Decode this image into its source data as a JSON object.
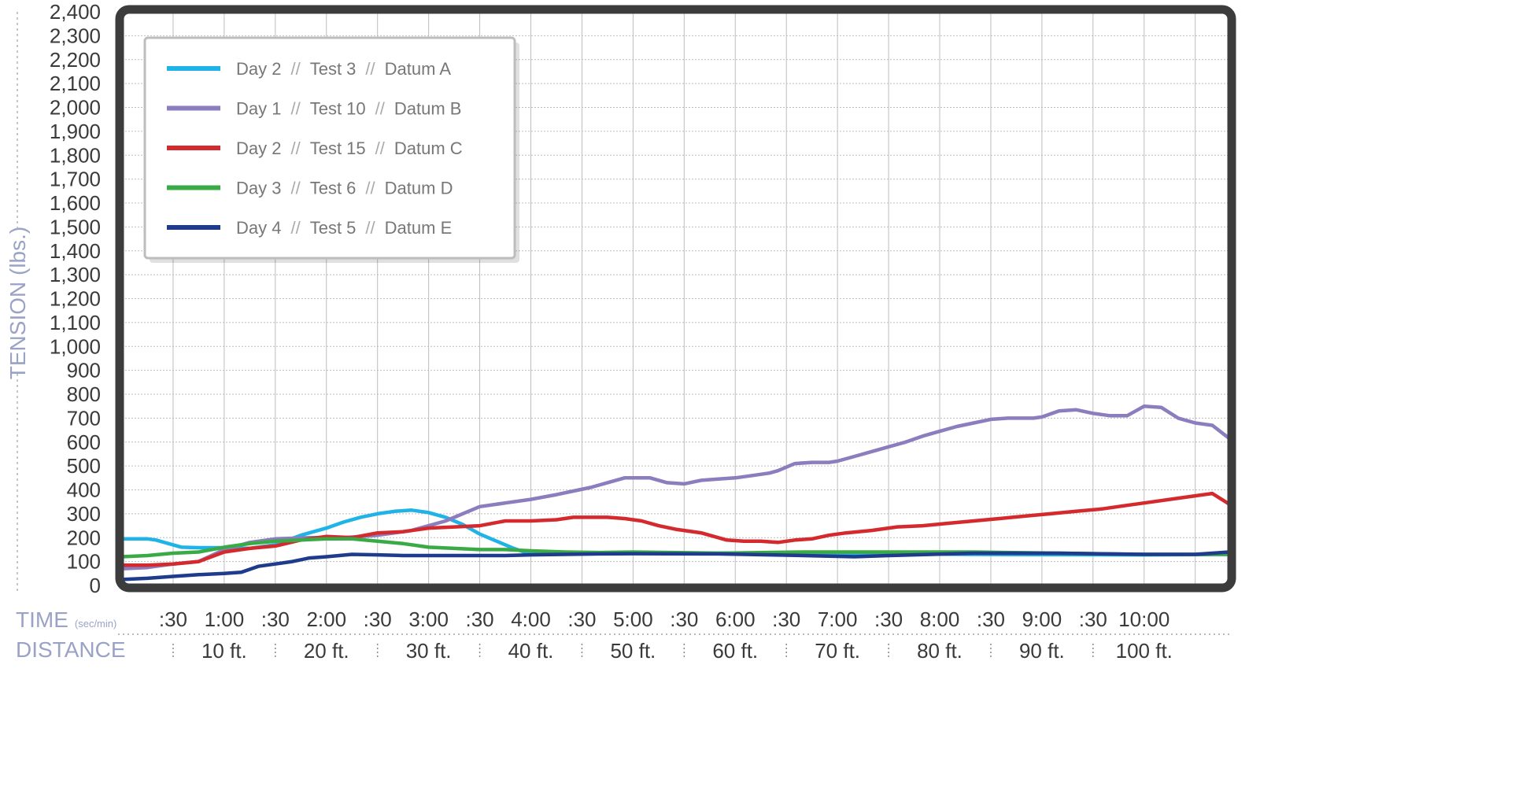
{
  "chart_data": {
    "type": "line",
    "ylabel": "TENSION (lbs.)",
    "ylim": [
      0,
      2400
    ],
    "y_ticks": [
      "0",
      "100",
      "200",
      "300",
      "400",
      "500",
      "600",
      "700",
      "800",
      "900",
      "1,000",
      "1,100",
      "1,200",
      "1,300",
      "1,400",
      "1,500",
      "1,600",
      "1,700",
      "1,800",
      "1,900",
      "2,000",
      "2,100",
      "2,200",
      "2,300",
      "2,400"
    ],
    "xlim_seconds": [
      0,
      650
    ],
    "time_axis": {
      "label": "TIME",
      "unit": "(sec/min)",
      "ticks": [
        ":30",
        "1:00",
        ":30",
        "2:00",
        ":30",
        "3:00",
        ":30",
        "4:00",
        ":30",
        "5:00",
        ":30",
        "6:00",
        ":30",
        "7:00",
        ":30",
        "8:00",
        ":30",
        "9:00",
        ":30",
        "10:00"
      ]
    },
    "distance_axis": {
      "label": "DISTANCE",
      "ticks": [
        "10 ft.",
        "20 ft.",
        "30 ft.",
        "40 ft.",
        "50 ft.",
        "60 ft.",
        "70 ft.",
        "80 ft.",
        "90 ft.",
        "100 ft."
      ]
    },
    "grid": true,
    "legend_position": "top-left",
    "series": [
      {
        "name": "Day 2 // Test 3 // Datum A",
        "legend": [
          "Day 2",
          "Test 3",
          "Datum A"
        ],
        "color": "#1fb3e8",
        "x": [
          0,
          15,
          20,
          30,
          35,
          45,
          60,
          75,
          90,
          105,
          120,
          130,
          140,
          150,
          160,
          170,
          180,
          190,
          200,
          210,
          220,
          230,
          240,
          250,
          260,
          280,
          300,
          400,
          500,
          600,
          650
        ],
        "y": [
          195,
          195,
          190,
          170,
          160,
          158,
          158,
          155,
          170,
          210,
          240,
          265,
          285,
          300,
          310,
          315,
          305,
          285,
          255,
          215,
          185,
          155,
          130,
          135,
          135,
          135,
          135,
          135,
          130,
          128,
          130
        ]
      },
      {
        "name": "Day 1 // Test 10 // Datum B",
        "legend": [
          "Day 1",
          "Test 10",
          "Datum B"
        ],
        "color": "#8b7dbe",
        "x": [
          0,
          15,
          30,
          45,
          60,
          75,
          90,
          110,
          130,
          150,
          170,
          190,
          210,
          225,
          240,
          255,
          265,
          275,
          285,
          295,
          300,
          310,
          320,
          330,
          340,
          350,
          360,
          370,
          380,
          385,
          395,
          405,
          415,
          420,
          430,
          440,
          450,
          460,
          470,
          480,
          490,
          500,
          510,
          520,
          530,
          535,
          540,
          550,
          560,
          570,
          575,
          580,
          590,
          595,
          600,
          610,
          620,
          630,
          640,
          650
        ],
        "y": [
          70,
          75,
          90,
          100,
          150,
          180,
          195,
          200,
          200,
          210,
          230,
          270,
          330,
          345,
          360,
          380,
          395,
          410,
          430,
          450,
          450,
          450,
          430,
          425,
          440,
          445,
          450,
          460,
          470,
          480,
          510,
          515,
          515,
          520,
          540,
          560,
          580,
          600,
          625,
          645,
          665,
          680,
          695,
          700,
          700,
          700,
          705,
          730,
          735,
          720,
          715,
          710,
          710,
          730,
          750,
          745,
          700,
          680,
          670,
          615
        ]
      },
      {
        "name": "Day 2 // Test 15 // Datum C",
        "legend": [
          "Day 2",
          "Test 15",
          "Datum C"
        ],
        "color": "#d42a2e",
        "x": [
          0,
          15,
          30,
          45,
          60,
          75,
          90,
          105,
          120,
          135,
          150,
          165,
          180,
          195,
          210,
          225,
          240,
          255,
          265,
          275,
          285,
          295,
          305,
          315,
          325,
          340,
          355,
          365,
          375,
          385,
          395,
          405,
          415,
          425,
          440,
          455,
          470,
          485,
          500,
          515,
          530,
          545,
          560,
          575,
          590,
          605,
          620,
          630,
          640,
          650
        ],
        "y": [
          85,
          85,
          90,
          100,
          140,
          155,
          165,
          190,
          205,
          200,
          220,
          225,
          240,
          245,
          250,
          270,
          270,
          275,
          285,
          285,
          285,
          280,
          270,
          250,
          235,
          220,
          190,
          185,
          185,
          180,
          190,
          195,
          210,
          220,
          230,
          245,
          250,
          260,
          270,
          280,
          290,
          300,
          310,
          320,
          335,
          350,
          365,
          375,
          385,
          340
        ]
      },
      {
        "name": "Day 3 // Test 6 // Datum D",
        "legend": [
          "Day 3",
          "Test 6",
          "Datum D"
        ],
        "color": "#3aaa46",
        "x": [
          0,
          15,
          30,
          45,
          60,
          75,
          90,
          105,
          120,
          135,
          150,
          165,
          180,
          195,
          210,
          225,
          240,
          260,
          280,
          300,
          350,
          400,
          450,
          500,
          550,
          600,
          650
        ],
        "y": [
          120,
          125,
          135,
          140,
          160,
          175,
          185,
          190,
          195,
          195,
          185,
          175,
          160,
          155,
          150,
          150,
          145,
          140,
          138,
          140,
          135,
          140,
          140,
          140,
          135,
          130,
          130
        ]
      },
      {
        "name": "Day 4 // Test 5 // Datum E",
        "legend": [
          "Day 4",
          "Test 5",
          "Datum E"
        ],
        "color": "#1f3b8c",
        "x": [
          0,
          15,
          30,
          45,
          60,
          70,
          80,
          90,
          100,
          110,
          120,
          135,
          150,
          165,
          180,
          195,
          210,
          225,
          240,
          260,
          280,
          300,
          350,
          400,
          430,
          450,
          500,
          550,
          600,
          630,
          650
        ],
        "y": [
          25,
          30,
          38,
          45,
          50,
          55,
          80,
          90,
          100,
          115,
          120,
          130,
          128,
          125,
          125,
          125,
          125,
          125,
          128,
          130,
          132,
          133,
          132,
          125,
          120,
          125,
          135,
          135,
          130,
          130,
          140
        ]
      }
    ]
  }
}
